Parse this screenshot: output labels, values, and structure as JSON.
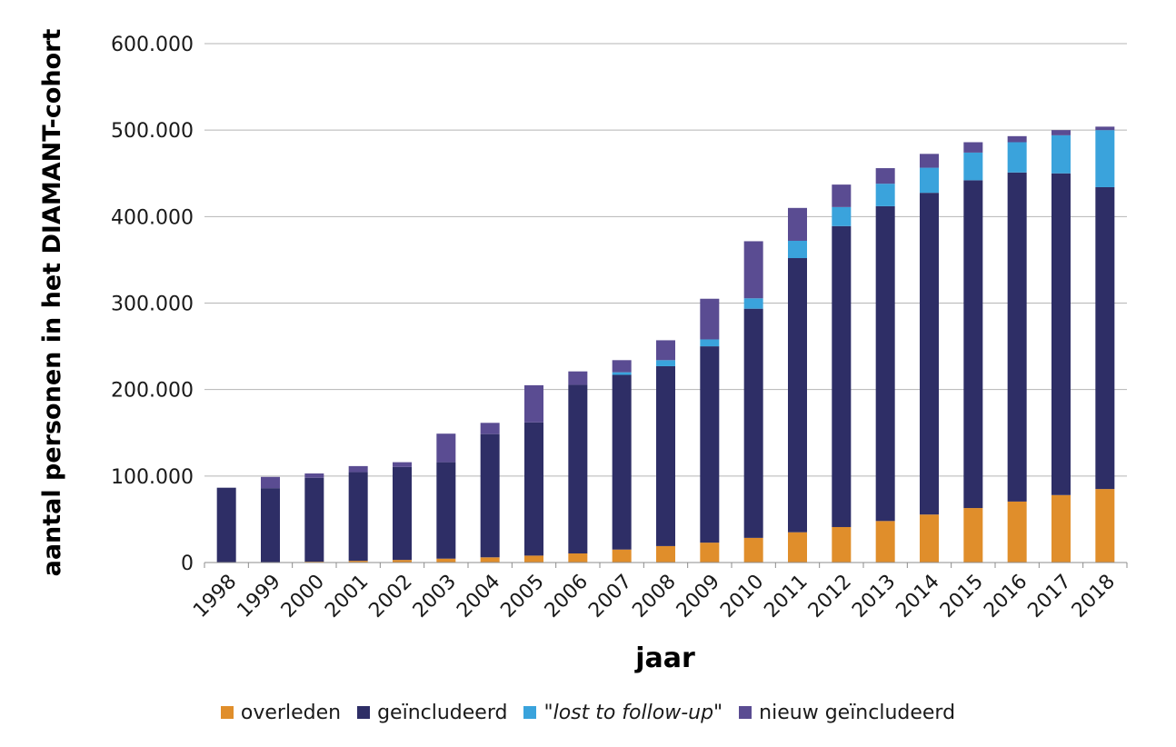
{
  "chart_data": {
    "type": "bar",
    "stacked": true,
    "xlabel": "jaar",
    "ylabel": "aantal personen in het DIAMANT-cohort",
    "ylim": [
      0,
      600000
    ],
    "yticks": [
      "0",
      "100.000",
      "200.000",
      "300.000",
      "400.000",
      "500.000",
      "600.000"
    ],
    "grid": true,
    "legend_position": "bottom",
    "categories": [
      "1998",
      "1999",
      "2000",
      "2001",
      "2002",
      "2003",
      "2004",
      "2005",
      "2006",
      "2007",
      "2008",
      "2009",
      "2010",
      "2011",
      "2012",
      "2013",
      "2014",
      "2015",
      "2016",
      "2017",
      "2018"
    ],
    "series": [
      {
        "name": "overleden",
        "color": "#e08e2b",
        "values": [
          0,
          500,
          1000,
          2000,
          3000,
          4500,
          6000,
          8000,
          10500,
          15000,
          19000,
          23000,
          28500,
          35000,
          41000,
          48000,
          55500,
          63000,
          70500,
          78000,
          85000
        ]
      },
      {
        "name": "geïncludeerd",
        "color": "#2e2e66",
        "values": [
          86500,
          85500,
          97000,
          102500,
          107500,
          111500,
          142500,
          154000,
          195000,
          202000,
          208000,
          227000,
          265000,
          317000,
          348000,
          364000,
          372000,
          379000,
          380500,
          372000,
          349000
        ]
      },
      {
        "name": "\"lost to follow-up\"",
        "color": "#3aa3dc",
        "values": [
          0,
          0,
          0,
          0,
          0,
          0,
          0,
          0,
          0,
          3000,
          7000,
          8000,
          12000,
          20000,
          22000,
          26000,
          29000,
          32000,
          35000,
          44000,
          66000
        ]
      },
      {
        "name": "nieuw geïncludeerd",
        "color": "#5a4c92",
        "values": [
          0,
          13000,
          5000,
          7000,
          5500,
          33000,
          13000,
          43000,
          15500,
          14000,
          23000,
          47000,
          66000,
          38000,
          26000,
          18000,
          16000,
          12000,
          7000,
          6000,
          4000
        ]
      }
    ]
  }
}
